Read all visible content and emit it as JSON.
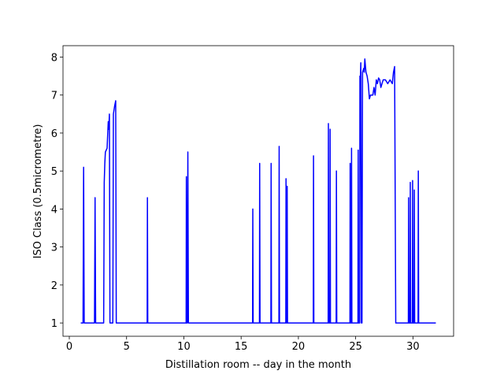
{
  "chart_data": {
    "type": "line",
    "xlabel": "Distillation room -- day in the month",
    "ylabel": "ISO Class (0.5micrometre)",
    "xlim": [
      -0.55,
      33.55
    ],
    "ylim": [
      0.65,
      8.3
    ],
    "xticks": [
      0,
      5,
      10,
      15,
      20,
      25,
      30
    ],
    "yticks": [
      1,
      2,
      3,
      4,
      5,
      6,
      7,
      8
    ],
    "x": [
      1.0,
      1.2,
      1.25,
      1.3,
      2.2,
      2.25,
      2.3,
      3.0,
      3.05,
      3.1,
      3.15,
      3.3,
      3.4,
      3.45,
      3.5,
      3.55,
      3.8,
      3.85,
      3.95,
      4.05,
      4.1,
      6.8,
      6.82,
      6.85,
      10.2,
      10.22,
      10.25,
      10.3,
      10.35,
      10.4,
      16.0,
      16.02,
      16.05,
      16.6,
      16.62,
      16.65,
      17.6,
      17.62,
      17.65,
      18.3,
      18.32,
      18.35,
      18.9,
      18.92,
      18.95,
      19.0,
      19.02,
      19.05,
      21.3,
      21.32,
      21.35,
      22.6,
      22.62,
      22.65,
      22.75,
      22.77,
      22.8,
      23.3,
      23.32,
      23.35,
      24.5,
      24.52,
      24.55,
      24.62,
      24.64,
      24.67,
      25.2,
      25.22,
      25.25,
      25.35,
      25.37,
      25.4,
      25.45,
      25.5,
      25.55,
      25.6,
      25.7,
      25.75,
      25.8,
      25.9,
      26.0,
      26.1,
      26.2,
      26.3,
      26.5,
      26.6,
      26.7,
      26.8,
      26.9,
      27.0,
      27.1,
      27.2,
      27.4,
      27.6,
      27.8,
      28.0,
      28.2,
      28.3,
      28.4,
      28.5,
      29.6,
      29.62,
      29.65,
      29.75,
      29.77,
      29.8,
      29.95,
      29.97,
      30.0,
      30.1,
      30.12,
      30.15,
      30.45,
      30.47,
      30.5,
      32.0
    ],
    "series": [
      {
        "color": "#0000ff",
        "values": [
          1,
          1,
          5.1,
          1,
          1,
          4.3,
          1,
          1,
          4.7,
          5.2,
          5.5,
          5.6,
          6.3,
          6.1,
          6.5,
          1,
          1,
          6.5,
          6.7,
          6.85,
          1,
          1,
          4.3,
          1,
          1,
          4.85,
          1,
          1,
          5.5,
          1,
          1,
          4.0,
          1,
          1,
          5.2,
          1,
          1,
          5.2,
          1,
          1,
          5.65,
          1,
          1,
          4.8,
          1,
          1,
          4.6,
          1,
          1,
          5.4,
          1,
          1,
          6.25,
          1,
          1,
          6.1,
          1,
          1,
          5.0,
          1,
          1,
          5.2,
          1,
          1,
          5.6,
          1,
          1,
          5.55,
          1,
          1,
          7.5,
          7.3,
          7.85,
          1,
          1,
          7.6,
          7.7,
          7.6,
          7.95,
          7.6,
          7.5,
          7.3,
          6.9,
          7.0,
          7.0,
          7.2,
          7.0,
          7.4,
          7.3,
          7.45,
          7.4,
          7.2,
          7.4,
          7.4,
          7.3,
          7.4,
          7.3,
          7.6,
          7.75,
          1,
          1,
          4.3,
          1,
          1,
          4.7,
          1,
          1,
          4.75,
          1,
          1,
          4.5,
          1,
          1,
          5.0,
          1,
          1
        ]
      }
    ]
  }
}
